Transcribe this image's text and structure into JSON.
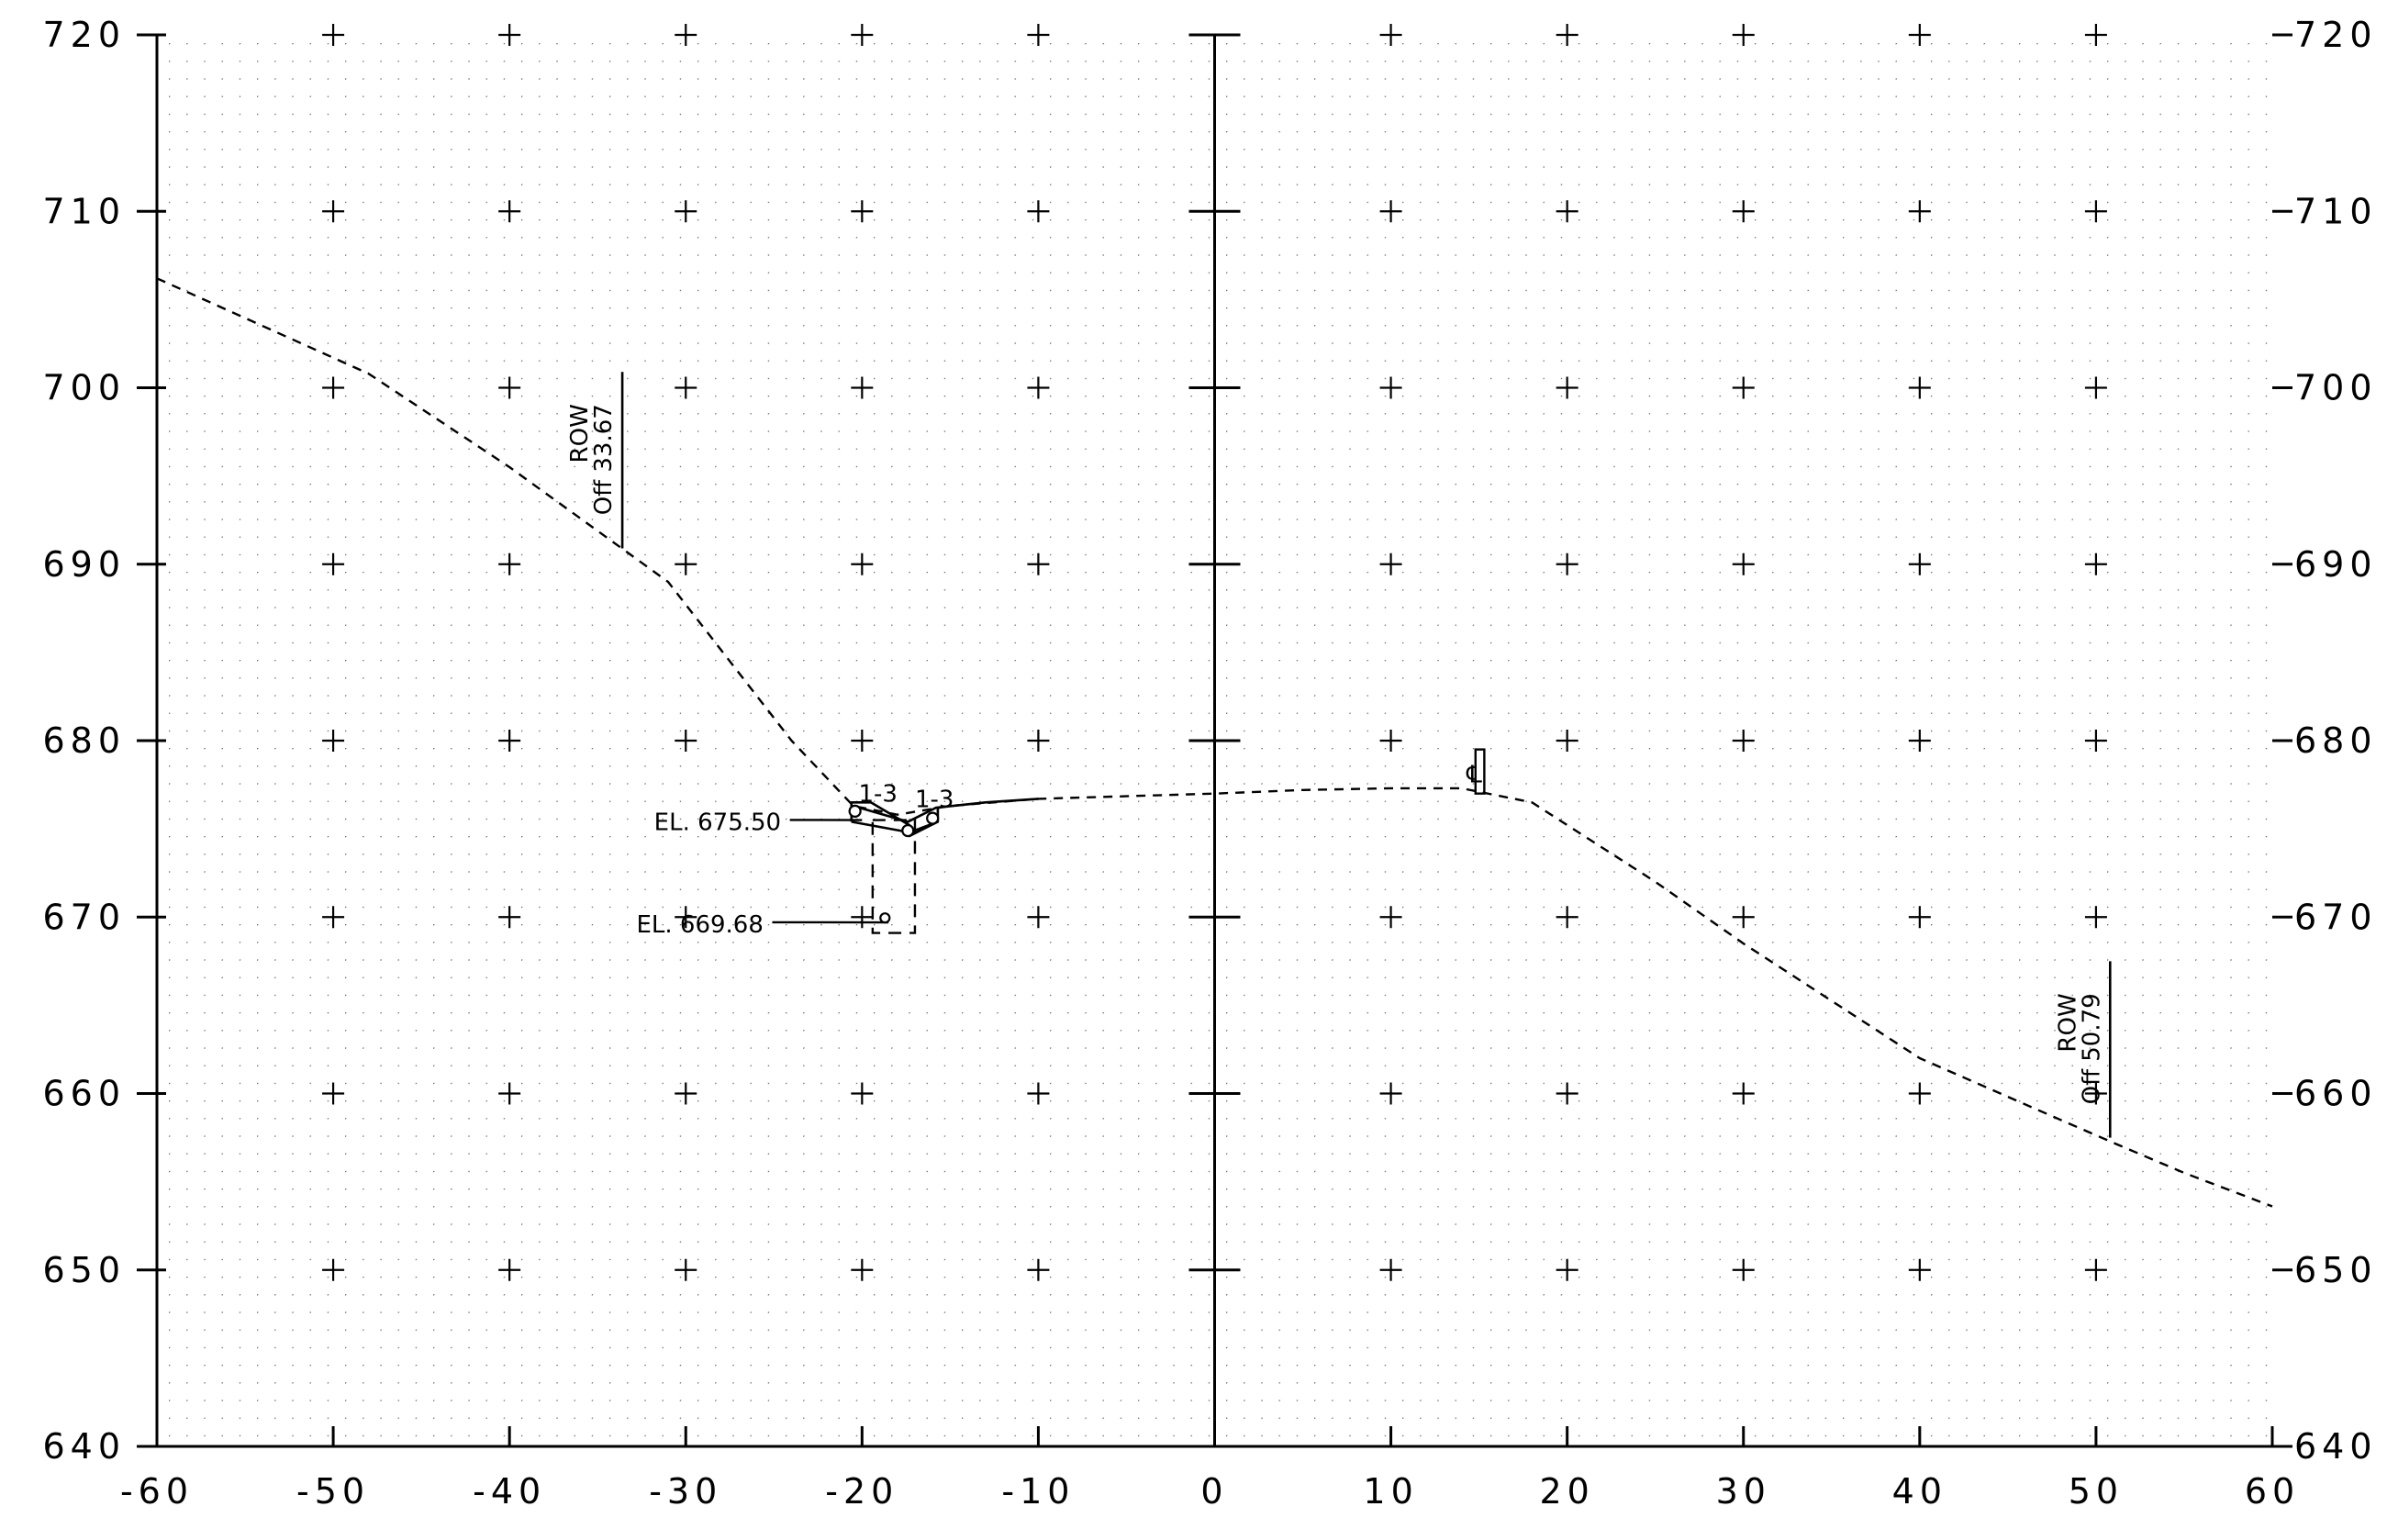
{
  "chart_data": {
    "type": "line",
    "title": "",
    "xlabel": "",
    "ylabel": "",
    "xlim": [
      -60,
      60
    ],
    "ylim": [
      640,
      720
    ],
    "x_ticks": [
      "-60",
      "-50",
      "-40",
      "-30",
      "-20",
      "-10",
      "0",
      "10",
      "20",
      "30",
      "40",
      "50",
      "60"
    ],
    "y_ticks": [
      "640",
      "650",
      "660",
      "670",
      "680",
      "690",
      "700",
      "710",
      "720"
    ],
    "grid": "dotted",
    "series": [
      {
        "style": "dashed",
        "points": [
          [
            -60,
            706.2
          ],
          [
            -48,
            700.8
          ],
          [
            -40,
            695.5
          ],
          [
            -31,
            689
          ],
          [
            -24,
            680
          ],
          [
            -20.5,
            676.3
          ],
          [
            -18,
            675.8
          ],
          [
            -15,
            676.3
          ],
          [
            -10,
            676.7
          ],
          [
            0,
            677
          ],
          [
            5,
            677.2
          ],
          [
            10,
            677.3
          ],
          [
            14,
            677.3
          ],
          [
            18,
            676.5
          ],
          [
            25,
            672
          ],
          [
            30,
            668.5
          ],
          [
            40,
            662
          ],
          [
            48,
            658.5
          ],
          [
            51,
            657.2
          ],
          [
            55,
            655.5
          ],
          [
            60,
            653.6
          ]
        ]
      },
      {
        "style": "solid",
        "points": [
          [
            -20.5,
            676.3
          ],
          [
            -17.4,
            675.4
          ],
          [
            -15.8,
            676.2
          ],
          [
            -13,
            676.5
          ],
          [
            -10,
            676.7
          ]
        ]
      },
      {
        "style": "solid",
        "points": [
          [
            -20.6,
            675.4
          ],
          [
            -17.3,
            674.8
          ],
          [
            -15.7,
            675.4
          ]
        ]
      },
      {
        "style": "solid",
        "points": [
          [
            -20.6,
            675.4
          ],
          [
            -20.6,
            676.5
          ],
          [
            -19.5,
            676.5
          ],
          [
            -17.3,
            675.2
          ],
          [
            -17.3,
            674.6
          ],
          [
            -15.7,
            675.4
          ],
          [
            -15.7,
            676.2
          ]
        ]
      }
    ],
    "annotations": [
      {
        "text": "EL. 675.50",
        "x": -31.8,
        "y": 675.4,
        "leader_to": [
          -20,
          675.5
        ]
      },
      {
        "text": "EL. 669.68",
        "x": -32.8,
        "y": 669.6,
        "leader_to": [
          -18.5,
          669.7
        ]
      },
      {
        "text": "1-3",
        "x": -20.2,
        "y": 677
      },
      {
        "text": "1-3",
        "x": -17,
        "y": 676.7
      },
      {
        "lines": [
          "ROW",
          "Off 33.67"
        ],
        "x": -33.6,
        "y": 690.9,
        "rotate": -90,
        "marker_top": 700.9
      },
      {
        "lines": [
          "ROW",
          "Off 50.79"
        ],
        "x": 50.8,
        "y": 657.5,
        "rotate": -90,
        "marker_top": 667.5
      },
      {
        "text": "℄",
        "x": 14.3,
        "y": 678.1
      }
    ],
    "pipe": {
      "x": [
        -19.4,
        -17
      ],
      "y": [
        669.1,
        675.5
      ]
    },
    "centerline": {
      "x": [
        14.8,
        15.3
      ],
      "y": [
        677,
        679.5
      ]
    }
  }
}
